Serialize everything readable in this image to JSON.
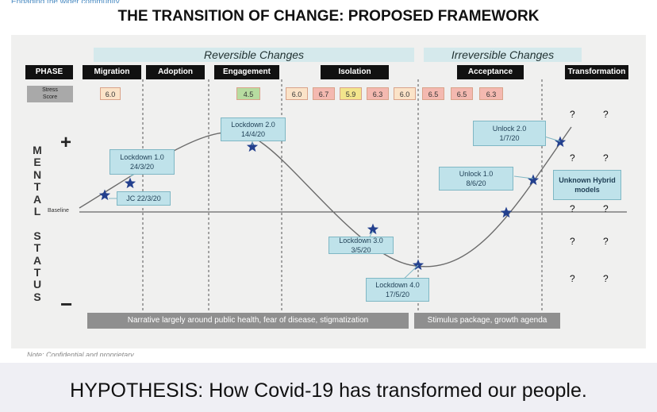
{
  "title": "THE TRANSITION OF CHANGE: PROPOSED FRAMEWORK",
  "bands": {
    "reversible": "Reversible Changes",
    "irreversible": "Irreversible Changes"
  },
  "phase_label": "PHASE",
  "phases": [
    "Migration",
    "Adoption",
    "Engagement",
    "Isolation",
    "Acceptance",
    "Transformation"
  ],
  "stress_label_1": "Stress",
  "stress_label_2": "Score",
  "scores": [
    "6.0",
    "4.5",
    "6.0",
    "6.7",
    "5.9",
    "6.3",
    "6.0",
    "6.5",
    "6.5",
    "6.3"
  ],
  "score_colors": [
    "#fbe3c8",
    "#b7dca0",
    "#fbe3c8",
    "#f4b9b0",
    "#f3e58c",
    "#f4b9b0",
    "#fbe3c8",
    "#f4b9b0",
    "#f4b9b0",
    "#f4b9b0"
  ],
  "y_axis": {
    "plus": "+",
    "minus": "−",
    "letters": [
      "M",
      "E",
      "N",
      "T",
      "A",
      "L",
      "",
      "S",
      "T",
      "A",
      "T",
      "U",
      "S"
    ],
    "baseline": "Baseline"
  },
  "callouts": {
    "jc": "JC 22/3/20",
    "lockdown1": [
      "Lockdown 1.0",
      "24/3/20"
    ],
    "lockdown2": [
      "Lockdown 2.0",
      "14/4/20"
    ],
    "lockdown3": [
      "Lockdown 3.0",
      "3/5/20"
    ],
    "lockdown4": [
      "Lockdown 4.0",
      "17/5/20"
    ],
    "unlock1": [
      "Unlock 1.0",
      "8/6/20"
    ],
    "unlock2": [
      "Unlock 2.0",
      "1/7/20"
    ],
    "hybrid": [
      "Unknown Hybrid",
      "models"
    ]
  },
  "question_mark": "?",
  "bars": {
    "left": "Narrative largely around public health, fear of disease, stigmatization",
    "right": "Stimulus package, growth agenda"
  },
  "note": "Note: Confidential and proprietary",
  "top_cut": "Engaging the wider community",
  "hypothesis": "HYPOTHESIS: How Covid-19 has transformed our people.",
  "colors": {
    "curve": "#666666",
    "star": "#23408e",
    "band": "#d5e9ec",
    "callout": "#bfe2ea",
    "bar": "#8f8f8f"
  }
}
